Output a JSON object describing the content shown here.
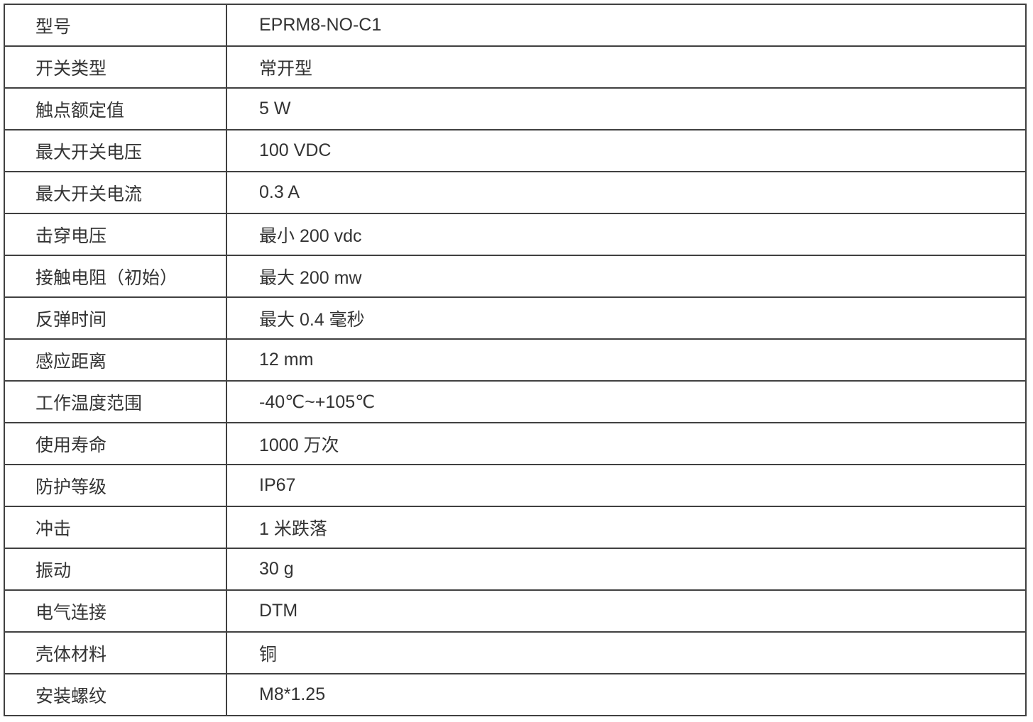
{
  "table": {
    "rows": [
      {
        "label": "型号",
        "value": "EPRM8-NO-C1"
      },
      {
        "label": "开关类型",
        "value": "常开型"
      },
      {
        "label": "触点额定值",
        "value": "5 W"
      },
      {
        "label": "最大开关电压",
        "value": "100 VDC"
      },
      {
        "label": "最大开关电流",
        "value": "0.3 A"
      },
      {
        "label": "击穿电压",
        "value": "最小 200 vdc"
      },
      {
        "label": "接触电阻（初始）",
        "value": "最大 200 mw"
      },
      {
        "label": "反弹时间",
        "value": "最大 0.4 毫秒"
      },
      {
        "label": "感应距离",
        "value": "12 mm"
      },
      {
        "label": "工作温度范围",
        "value": "-40℃~+105℃"
      },
      {
        "label": "使用寿命",
        "value": "1000 万次"
      },
      {
        "label": "防护等级",
        "value": "IP67"
      },
      {
        "label": "冲击",
        "value": "1 米跌落"
      },
      {
        "label": "振动",
        "value": "30 g"
      },
      {
        "label": "电气连接",
        "value": "DTM"
      },
      {
        "label": "壳体材料",
        "value": "铜"
      },
      {
        "label": "安装螺纹",
        "value": "M8*1.25"
      }
    ],
    "colors": {
      "border": "#404040",
      "text": "#333333",
      "background": "#ffffff"
    }
  }
}
